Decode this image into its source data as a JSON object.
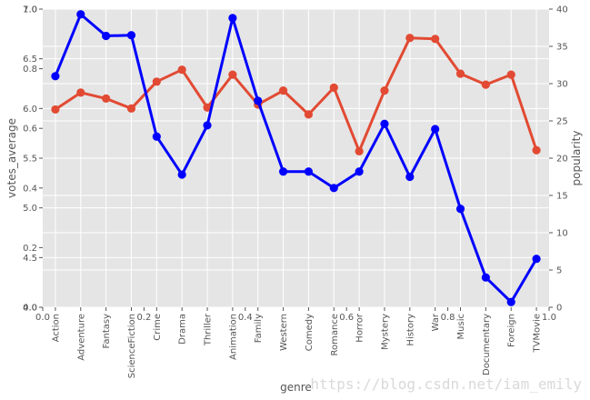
{
  "chart_data": {
    "type": "line",
    "title": "",
    "xlabel": "genre",
    "categories": [
      "Action",
      "Adventure",
      "Fantasy",
      "ScienceFiction",
      "Crime",
      "Drama",
      "Thriller",
      "Animation",
      "Family",
      "Western",
      "Comedy",
      "Romance",
      "Horror",
      "Mystery",
      "History",
      "War",
      "Music",
      "Documentary",
      "Foreign",
      "TVMovie"
    ],
    "left_axis": {
      "label": "votes_average",
      "ylim": [
        4.0,
        7.0
      ],
      "ticks": [
        "4.0",
        "4.5",
        "5.0",
        "5.5",
        "6.0",
        "6.5",
        "7.0"
      ]
    },
    "right_axis": {
      "label": "popularity",
      "ylim": [
        0,
        40
      ],
      "ticks": [
        "0",
        "5",
        "10",
        "15",
        "20",
        "25",
        "30",
        "35",
        "40"
      ]
    },
    "overlay_axis": {
      "x_ticks": [
        "0.0",
        "0.2",
        "0.4",
        "0.6",
        "0.8",
        "1.0"
      ],
      "y_ticks": [
        "0.0",
        "0.2",
        "0.4",
        "0.6",
        "0.8",
        "1.0"
      ],
      "x_right_tick": "1.0",
      "y_top_tick": "1.0"
    },
    "series": [
      {
        "axis": "left",
        "color": "#e24a33",
        "values": [
          5.99,
          6.16,
          6.1,
          6.0,
          6.27,
          6.39,
          6.01,
          6.34,
          6.04,
          6.18,
          5.94,
          6.21,
          5.57,
          6.18,
          6.71,
          6.7,
          6.35,
          6.24,
          6.34,
          5.58
        ]
      },
      {
        "axis": "right",
        "color": "#0000ff",
        "values": [
          31.0,
          39.3,
          36.4,
          36.5,
          22.9,
          17.8,
          24.4,
          38.8,
          27.7,
          18.2,
          18.2,
          16.0,
          18.2,
          24.6,
          17.5,
          23.9,
          13.2,
          4.0,
          0.7,
          6.5
        ]
      }
    ],
    "grid": true,
    "legend": "none"
  },
  "watermark": "https://blog.csdn.net/iam_emily"
}
